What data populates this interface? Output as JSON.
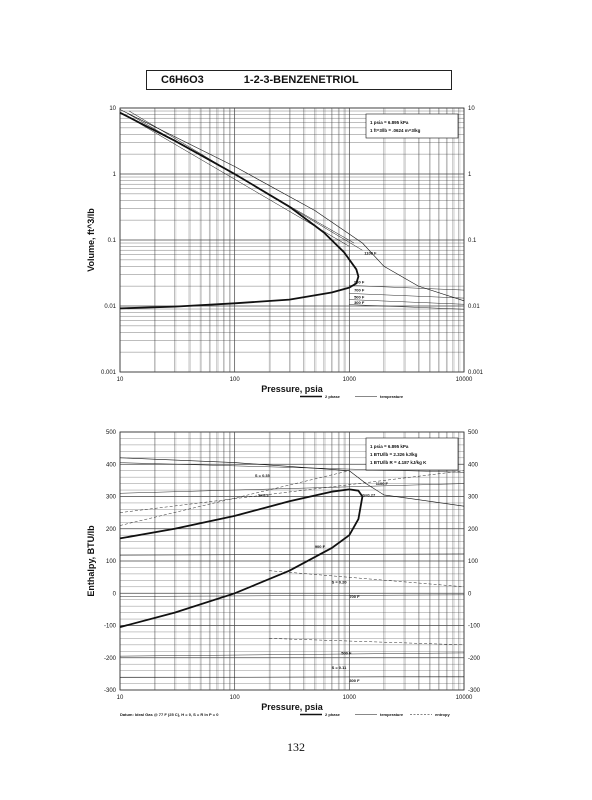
{
  "header": {
    "formula": "C6H6O3",
    "name": "1-2-3-BENZENETRIOL"
  },
  "page_number": "132",
  "chart_data": [
    {
      "type": "line",
      "xlabel": "Pressure,  psia",
      "ylabel": "Volume, ft^3/lb",
      "x_scale": "log",
      "y_scale": "log",
      "xlim": [
        10,
        10000
      ],
      "ylim": [
        0.001,
        10
      ],
      "x_ticks": [
        "10",
        "100",
        "1000",
        "10000"
      ],
      "y_ticks": [
        "0.001",
        "0.01",
        "0.1",
        "1",
        "10"
      ],
      "grid": true,
      "notes": [
        "1 psia  =  6.895 kPa",
        "1 ft^3/lb  =  .0624 m^3/kg"
      ],
      "legend": [
        "2 phase",
        "temperature"
      ],
      "legend_position": "bottom-right",
      "series": [
        {
          "name": "2 phase",
          "x": [
            10,
            30,
            100,
            300,
            600,
            900,
            1150,
            1200,
            1150,
            1000,
            700,
            300,
            100,
            30,
            10
          ],
          "y": [
            8.5,
            3.2,
            1.0,
            0.32,
            0.13,
            0.065,
            0.036,
            0.028,
            0.022,
            0.019,
            0.016,
            0.0125,
            0.011,
            0.0098,
            0.0092
          ]
        },
        {
          "name": "temperature",
          "x": [
            10,
            100,
            500,
            1300,
            2000,
            4000,
            10000
          ],
          "y": [
            9.5,
            1.3,
            0.28,
            0.09,
            0.04,
            0.02,
            0.012
          ]
        }
      ],
      "line_labels": [
        "1100 F",
        "900 F",
        "700 F",
        "500 F",
        "300 F"
      ]
    },
    {
      "type": "line",
      "xlabel": "Pressure,  psia",
      "ylabel": "Enthalpy, BTU/lb",
      "x_scale": "log",
      "xlim": [
        10,
        10000
      ],
      "ylim": [
        -300,
        500
      ],
      "x_ticks": [
        "10",
        "100",
        "1000",
        "10000"
      ],
      "y_ticks": [
        "500",
        "400",
        "300",
        "200",
        "100",
        "0",
        "-100",
        "-200",
        "-300"
      ],
      "grid": true,
      "notes": [
        "1 psia  =  6.895 kPa",
        "1 BTU/lb  =  2.326 kJ/kg",
        "1 BTU/lb R  =  4.187 kJ/kg K"
      ],
      "footnote": "Datum: Ideal Gas @ 77 F (25 C),  H = 0,  S = R ln P = 0",
      "legend": [
        "2 phase",
        "temperature",
        "entropy"
      ],
      "legend_position": "bottom-right",
      "series": [
        {
          "name": "2 phase",
          "x": [
            10,
            30,
            100,
            300,
            700,
            1000,
            1200,
            1300,
            1200,
            1000,
            700,
            300,
            100,
            30,
            10
          ],
          "y": [
            170,
            200,
            240,
            285,
            315,
            322,
            318,
            300,
            230,
            180,
            140,
            70,
            0,
            -60,
            -105
          ]
        },
        {
          "name": "temperature",
          "x": [
            10,
            100,
            1000,
            1400,
            2000,
            4000,
            10000
          ],
          "y": [
            420,
            405,
            380,
            340,
            305,
            290,
            270
          ]
        }
      ],
      "line_labels": [
        "S = 0.35",
        "S=0.3",
        "S=0.27",
        "1100 F",
        "900 F",
        "S = 0.20",
        "700 F",
        "500 F",
        "S = 0.11",
        "300 F"
      ]
    }
  ]
}
